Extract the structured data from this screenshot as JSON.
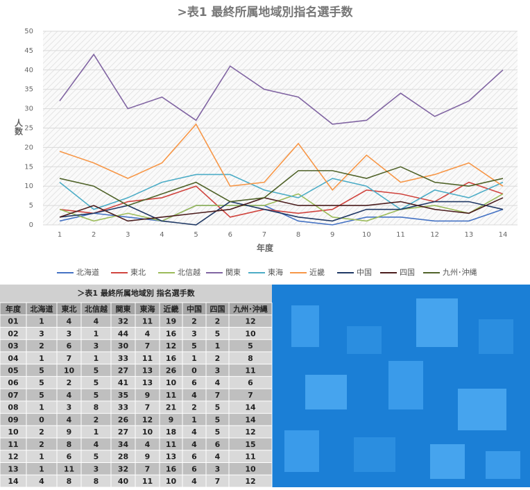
{
  "chart_data": {
    "type": "line",
    "title": ">表1 最終所属地域別指名選手数",
    "x_label": "年度",
    "y_label": "人数",
    "categories": [
      1,
      2,
      3,
      4,
      5,
      6,
      7,
      8,
      9,
      10,
      11,
      12,
      13,
      14
    ],
    "ylim": [
      0,
      50
    ],
    "yticks": [
      0,
      5,
      10,
      15,
      20,
      25,
      30,
      35,
      40,
      45,
      50
    ],
    "grid": true,
    "legend": "bottom",
    "series": [
      {
        "name": "北海道",
        "color": "#4472c4",
        "values": [
          1,
          3,
          2,
          1,
          5,
          5,
          5,
          1,
          0,
          2,
          2,
          1,
          1,
          4
        ]
      },
      {
        "name": "東北",
        "color": "#d0443e",
        "values": [
          4,
          3,
          6,
          7,
          10,
          2,
          4,
          3,
          4,
          9,
          8,
          6,
          11,
          8
        ]
      },
      {
        "name": "北信越",
        "color": "#9bbb59",
        "values": [
          4,
          1,
          3,
          1,
          5,
          5,
          5,
          8,
          2,
          1,
          4,
          5,
          3,
          8
        ]
      },
      {
        "name": "関東",
        "color": "#8064a2",
        "values": [
          32,
          44,
          30,
          33,
          27,
          41,
          35,
          33,
          26,
          27,
          34,
          28,
          32,
          40
        ]
      },
      {
        "name": "東海",
        "color": "#4bacc6",
        "values": [
          11,
          4,
          7,
          11,
          13,
          13,
          9,
          7,
          12,
          10,
          4,
          9,
          7,
          11
        ]
      },
      {
        "name": "近畿",
        "color": "#f79646",
        "values": [
          19,
          16,
          12,
          16,
          26,
          10,
          11,
          21,
          9,
          18,
          11,
          13,
          16,
          10
        ]
      },
      {
        "name": "中国",
        "color": "#1f3864",
        "values": [
          2,
          3,
          5,
          1,
          0,
          6,
          4,
          2,
          1,
          4,
          4,
          6,
          6,
          4
        ]
      },
      {
        "name": "四国",
        "color": "#4a1c1c",
        "values": [
          2,
          5,
          1,
          2,
          3,
          4,
          7,
          5,
          5,
          5,
          6,
          4,
          3,
          7
        ]
      },
      {
        "name": "九州･沖縄",
        "color": "#4f6228",
        "values": [
          12,
          10,
          5,
          8,
          11,
          6,
          7,
          14,
          14,
          12,
          15,
          11,
          10,
          12
        ]
      }
    ]
  },
  "table": {
    "title": "＞表1 最終所属地域別 指名選手数",
    "year_header": "年度",
    "headers": [
      "北海道",
      "東北",
      "北信越",
      "関東",
      "東海",
      "近畿",
      "中国",
      "四国",
      "九州･沖縄"
    ],
    "years": [
      "01",
      "02",
      "03",
      "04",
      "05",
      "06",
      "07",
      "08",
      "09",
      "10",
      "11",
      "12",
      "13",
      "14"
    ]
  }
}
